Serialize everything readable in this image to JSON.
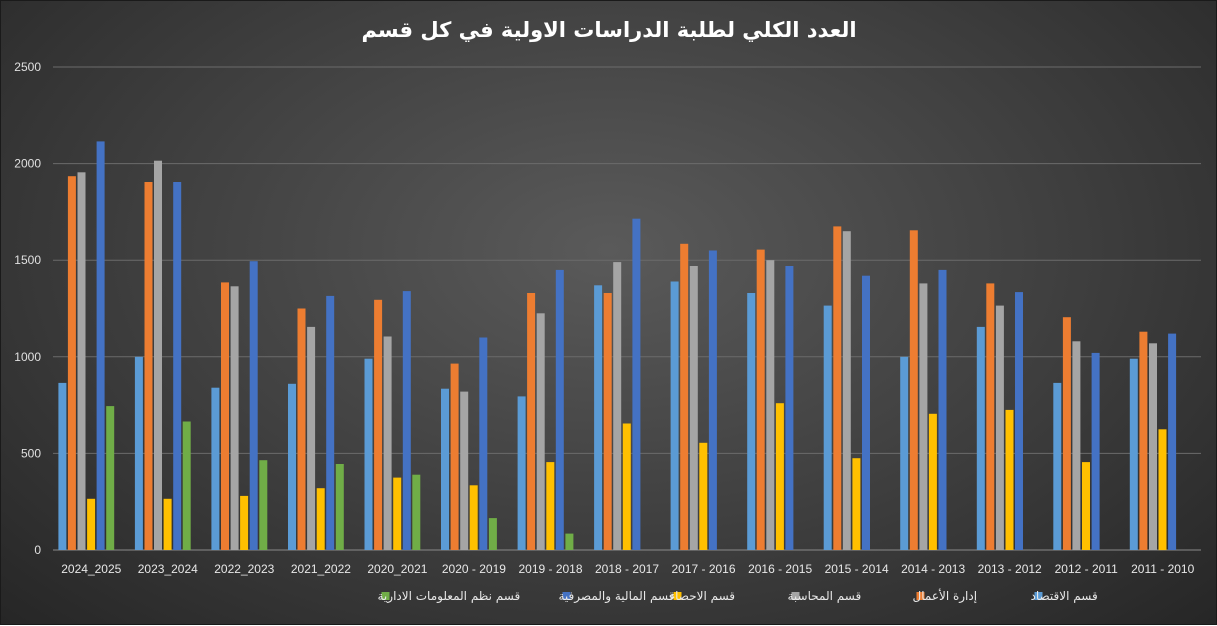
{
  "chart_data": {
    "type": "bar",
    "title": "العدد الكلي لطلبة الدراسات الاولية في كل قسم",
    "xlabel": "",
    "ylabel": "",
    "ylim": [
      0,
      2500
    ],
    "yticks": [
      "0",
      "500",
      "1000",
      "1500",
      "2000",
      "2500"
    ],
    "grid": true,
    "legend_position": "bottom",
    "categories": [
      "2024_2025",
      "2023_2024",
      "2022_2023",
      "2021_2022",
      "2020_2021",
      "2020 - 2019",
      "2019 - 2018",
      "2018 - 2017",
      "2017 - 2016",
      "2016 - 2015",
      "2015 - 2014",
      "2014 - 2013",
      "2013 - 2012",
      "2012 - 2011",
      "2011 - 2010"
    ],
    "series": [
      {
        "name": "قسم الاقتصاد",
        "color": "#5b9bd5",
        "values": [
          865,
          1000,
          840,
          860,
          990,
          835,
          795,
          1370,
          1390,
          1330,
          1265,
          1000,
          1155,
          865,
          990
        ]
      },
      {
        "name": "إدارة الأعمال",
        "color": "#ed7d31",
        "values": [
          1935,
          1905,
          1385,
          1250,
          1295,
          965,
          1330,
          1330,
          1585,
          1555,
          1675,
          1655,
          1380,
          1205,
          1130
        ]
      },
      {
        "name": "قسم المحاسبة",
        "color": "#a5a5a5",
        "values": [
          1955,
          2015,
          1365,
          1155,
          1105,
          820,
          1225,
          1490,
          1470,
          1500,
          1650,
          1380,
          1265,
          1080,
          1070
        ]
      },
      {
        "name": "قسم الاحصاء",
        "color": "#ffc000",
        "values": [
          265,
          265,
          280,
          320,
          375,
          335,
          455,
          655,
          555,
          760,
          475,
          705,
          725,
          455,
          625
        ]
      },
      {
        "name": "قسم المالية والمصرفية",
        "color": "#4472c4",
        "values": [
          2115,
          1905,
          1495,
          1315,
          1340,
          1100,
          1450,
          1715,
          1550,
          1470,
          1420,
          1450,
          1335,
          1020,
          1120
        ]
      },
      {
        "name": "قسم نظم المعلومات الادارية",
        "color": "#70ad47",
        "values": [
          745,
          665,
          465,
          445,
          390,
          165,
          85,
          0,
          0,
          0,
          0,
          0,
          0,
          0,
          0
        ]
      }
    ]
  }
}
